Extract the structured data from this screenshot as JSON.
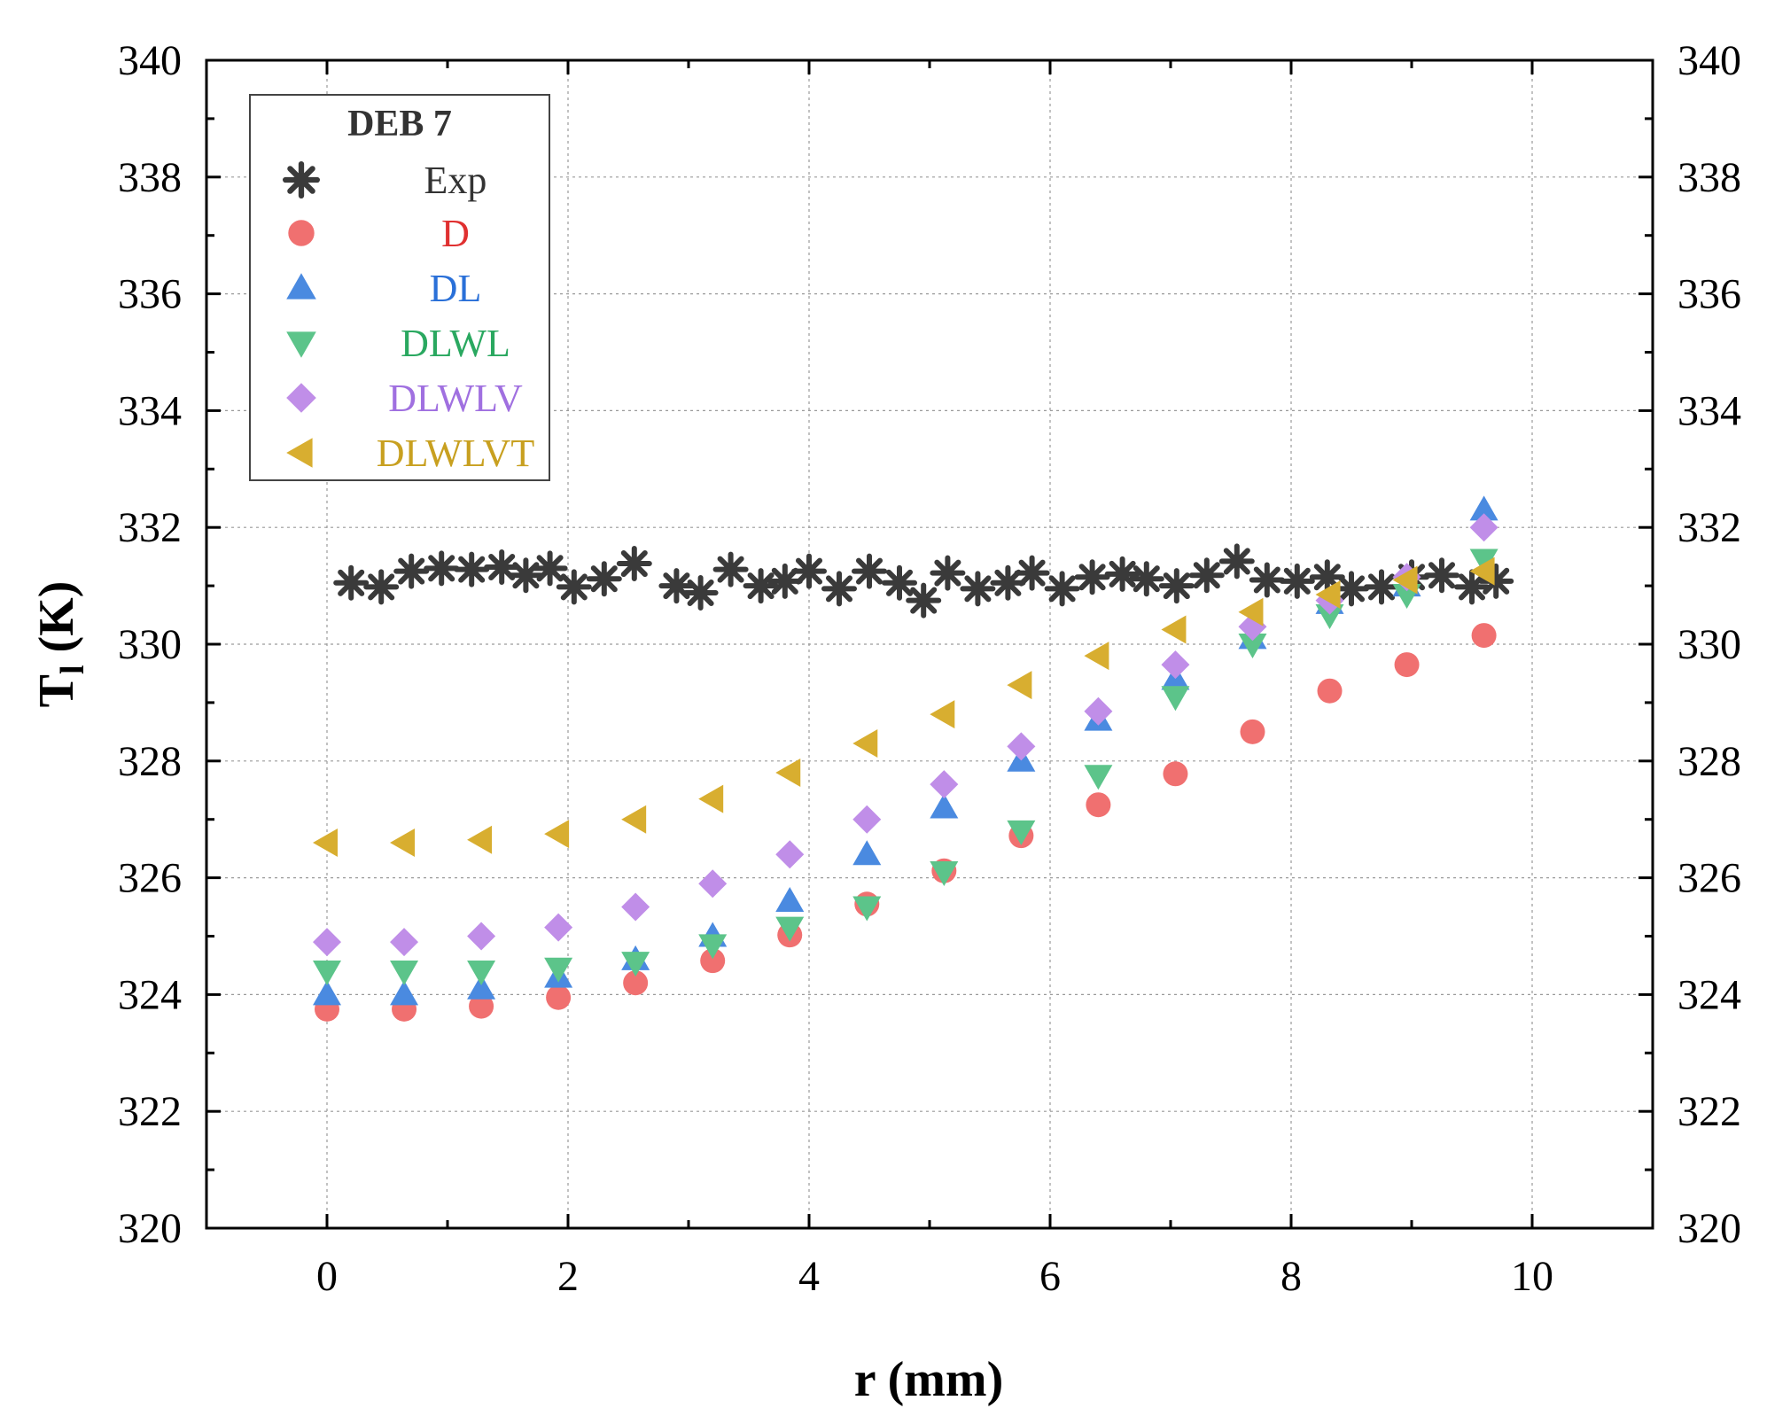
{
  "chart_data": {
    "type": "scatter",
    "xlabel": "r (mm)",
    "ylabel_main": "T",
    "ylabel_sub": "l",
    "ylabel_unit": " (K)",
    "xlim": [
      -1,
      11
    ],
    "ylim": [
      320,
      340
    ],
    "x_ticks": [
      "0",
      "2",
      "4",
      "6",
      "8",
      "10"
    ],
    "y_ticks": [
      "320",
      "322",
      "324",
      "326",
      "328",
      "330",
      "332",
      "334",
      "336",
      "338",
      "340"
    ],
    "mirror_right_axis": true,
    "grid": true,
    "legend": {
      "title": "DEB 7",
      "placement": "top-left"
    },
    "series": [
      {
        "name": "Exp",
        "marker": "asterisk",
        "color": "#3a3a3a",
        "label_color": "#333333",
        "points": [
          [
            0.2,
            331.05
          ],
          [
            0.45,
            330.98
          ],
          [
            0.7,
            331.25
          ],
          [
            0.95,
            331.3
          ],
          [
            1.2,
            331.28
          ],
          [
            1.45,
            331.32
          ],
          [
            1.65,
            331.18
          ],
          [
            1.85,
            331.3
          ],
          [
            2.05,
            330.98
          ],
          [
            2.3,
            331.12
          ],
          [
            2.55,
            331.38
          ],
          [
            2.9,
            331.0
          ],
          [
            3.1,
            330.88
          ],
          [
            3.35,
            331.28
          ],
          [
            3.6,
            331.0
          ],
          [
            3.8,
            331.08
          ],
          [
            4.0,
            331.25
          ],
          [
            4.25,
            330.95
          ],
          [
            4.5,
            331.25
          ],
          [
            4.75,
            331.05
          ],
          [
            4.95,
            330.75
          ],
          [
            5.15,
            331.22
          ],
          [
            5.4,
            330.95
          ],
          [
            5.65,
            331.05
          ],
          [
            5.85,
            331.22
          ],
          [
            6.1,
            330.95
          ],
          [
            6.35,
            331.15
          ],
          [
            6.6,
            331.2
          ],
          [
            6.8,
            331.12
          ],
          [
            7.05,
            331.0
          ],
          [
            7.3,
            331.18
          ],
          [
            7.55,
            331.42
          ],
          [
            7.8,
            331.1
          ],
          [
            8.05,
            331.08
          ],
          [
            8.3,
            331.15
          ],
          [
            8.5,
            330.95
          ],
          [
            8.75,
            330.98
          ],
          [
            9.0,
            331.15
          ],
          [
            9.25,
            331.18
          ],
          [
            9.5,
            330.98
          ],
          [
            9.7,
            331.08
          ]
        ]
      },
      {
        "name": "D",
        "marker": "circle",
        "color": "#f07070",
        "label_color": "#e03030",
        "points": [
          [
            0,
            323.75
          ],
          [
            0.64,
            323.75
          ],
          [
            1.28,
            323.8
          ],
          [
            1.92,
            323.95
          ],
          [
            2.56,
            324.2
          ],
          [
            3.2,
            324.58
          ],
          [
            3.84,
            325.02
          ],
          [
            4.48,
            325.55
          ],
          [
            5.12,
            326.12
          ],
          [
            5.76,
            326.72
          ],
          [
            6.4,
            327.25
          ],
          [
            7.04,
            327.78
          ],
          [
            7.68,
            328.5
          ],
          [
            8.32,
            329.2
          ],
          [
            8.96,
            329.65
          ],
          [
            9.6,
            330.15
          ]
        ]
      },
      {
        "name": "DL",
        "marker": "triangle-up",
        "color": "#4a8ae0",
        "label_color": "#2a70d8",
        "points": [
          [
            0,
            324.0
          ],
          [
            0.64,
            324.0
          ],
          [
            1.28,
            324.1
          ],
          [
            1.92,
            324.3
          ],
          [
            2.56,
            324.6
          ],
          [
            3.2,
            325.0
          ],
          [
            3.84,
            325.6
          ],
          [
            4.48,
            326.4
          ],
          [
            5.12,
            327.2
          ],
          [
            5.76,
            328.0
          ],
          [
            6.4,
            328.7
          ],
          [
            7.04,
            329.4
          ],
          [
            7.68,
            330.1
          ],
          [
            8.32,
            330.7
          ],
          [
            8.96,
            331.0
          ],
          [
            9.6,
            332.3
          ]
        ]
      },
      {
        "name": "DLWL",
        "marker": "triangle-down",
        "color": "#5cc48a",
        "label_color": "#2aa860",
        "points": [
          [
            0,
            324.4
          ],
          [
            0.64,
            324.4
          ],
          [
            1.28,
            324.4
          ],
          [
            1.92,
            324.45
          ],
          [
            2.56,
            324.55
          ],
          [
            3.2,
            324.85
          ],
          [
            3.84,
            325.15
          ],
          [
            4.48,
            325.5
          ],
          [
            5.12,
            326.1
          ],
          [
            5.76,
            326.8
          ],
          [
            6.4,
            327.75
          ],
          [
            7.04,
            329.1
          ],
          [
            7.68,
            330.0
          ],
          [
            8.32,
            330.5
          ],
          [
            8.96,
            330.85
          ],
          [
            9.6,
            331.45
          ]
        ]
      },
      {
        "name": "DLWLV",
        "marker": "diamond",
        "color": "#c08ee8",
        "label_color": "#a070e0",
        "points": [
          [
            0,
            324.9
          ],
          [
            0.64,
            324.9
          ],
          [
            1.28,
            325.0
          ],
          [
            1.92,
            325.15
          ],
          [
            2.56,
            325.5
          ],
          [
            3.2,
            325.9
          ],
          [
            3.84,
            326.4
          ],
          [
            4.48,
            327.0
          ],
          [
            5.12,
            327.6
          ],
          [
            5.76,
            328.25
          ],
          [
            6.4,
            328.85
          ],
          [
            7.04,
            329.65
          ],
          [
            7.68,
            330.3
          ],
          [
            8.32,
            330.75
          ],
          [
            8.96,
            331.15
          ],
          [
            9.6,
            332.0
          ]
        ]
      },
      {
        "name": "DLWLVT",
        "marker": "triangle-left",
        "color": "#d8ae30",
        "label_color": "#c8a020",
        "points": [
          [
            0,
            326.6
          ],
          [
            0.64,
            326.6
          ],
          [
            1.28,
            326.65
          ],
          [
            1.92,
            326.75
          ],
          [
            2.56,
            327.0
          ],
          [
            3.2,
            327.35
          ],
          [
            3.84,
            327.8
          ],
          [
            4.48,
            328.3
          ],
          [
            5.12,
            328.8
          ],
          [
            5.76,
            329.3
          ],
          [
            6.4,
            329.8
          ],
          [
            7.04,
            330.25
          ],
          [
            7.68,
            330.55
          ],
          [
            8.32,
            330.85
          ],
          [
            8.96,
            331.1
          ],
          [
            9.6,
            331.25
          ]
        ]
      }
    ]
  }
}
